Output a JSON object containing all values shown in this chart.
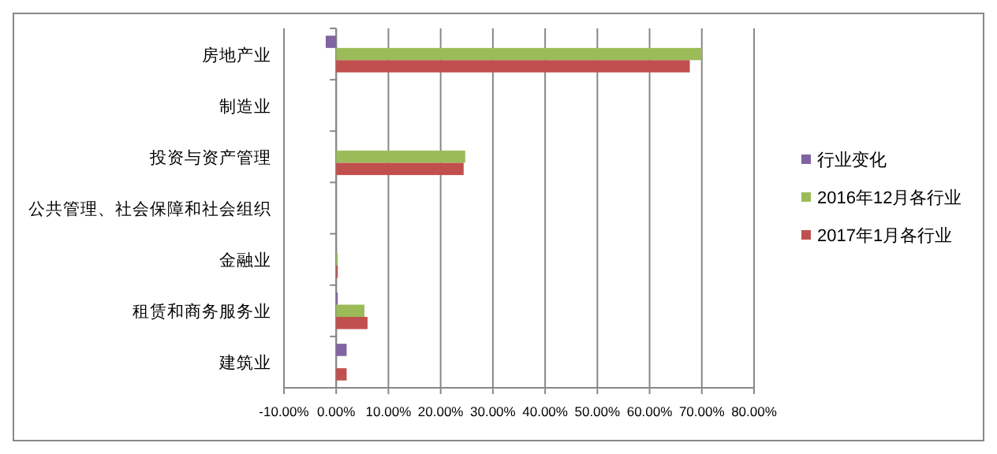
{
  "chart_data": {
    "type": "bar",
    "orientation": "horizontal",
    "categories": [
      "房地产业",
      "制造业",
      "投资与资产管理",
      "公共管理、社会保障和社会组织",
      "金融业",
      "租赁和商务服务业",
      "建筑业"
    ],
    "series": [
      {
        "name": "行业变化",
        "color": "#8064a2",
        "values": [
          -2,
          0,
          0,
          0,
          0,
          0.3,
          2
        ]
      },
      {
        "name": "2016年12月各行业",
        "color": "#9bbb59",
        "values": [
          70,
          0,
          24.7,
          0,
          0.3,
          5.4,
          0
        ]
      },
      {
        "name": "2017年1月各行业",
        "color": "#c0504d",
        "values": [
          67.7,
          0,
          24.4,
          0,
          0.3,
          6,
          2
        ]
      }
    ],
    "xlim": [
      -10,
      80
    ],
    "xticks": [
      {
        "value": -10,
        "label": "-10.00%"
      },
      {
        "value": 0,
        "label": "0.00%"
      },
      {
        "value": 10,
        "label": "10.00%"
      },
      {
        "value": 20,
        "label": "20.00%"
      },
      {
        "value": 30,
        "label": "30.00%"
      },
      {
        "value": 40,
        "label": "40.00%"
      },
      {
        "value": 50,
        "label": "50.00%"
      },
      {
        "value": 60,
        "label": "60.00%"
      },
      {
        "value": 70,
        "label": "70.00%"
      },
      {
        "value": 80,
        "label": "80.00%"
      }
    ],
    "grid": "x",
    "legend": "right"
  }
}
